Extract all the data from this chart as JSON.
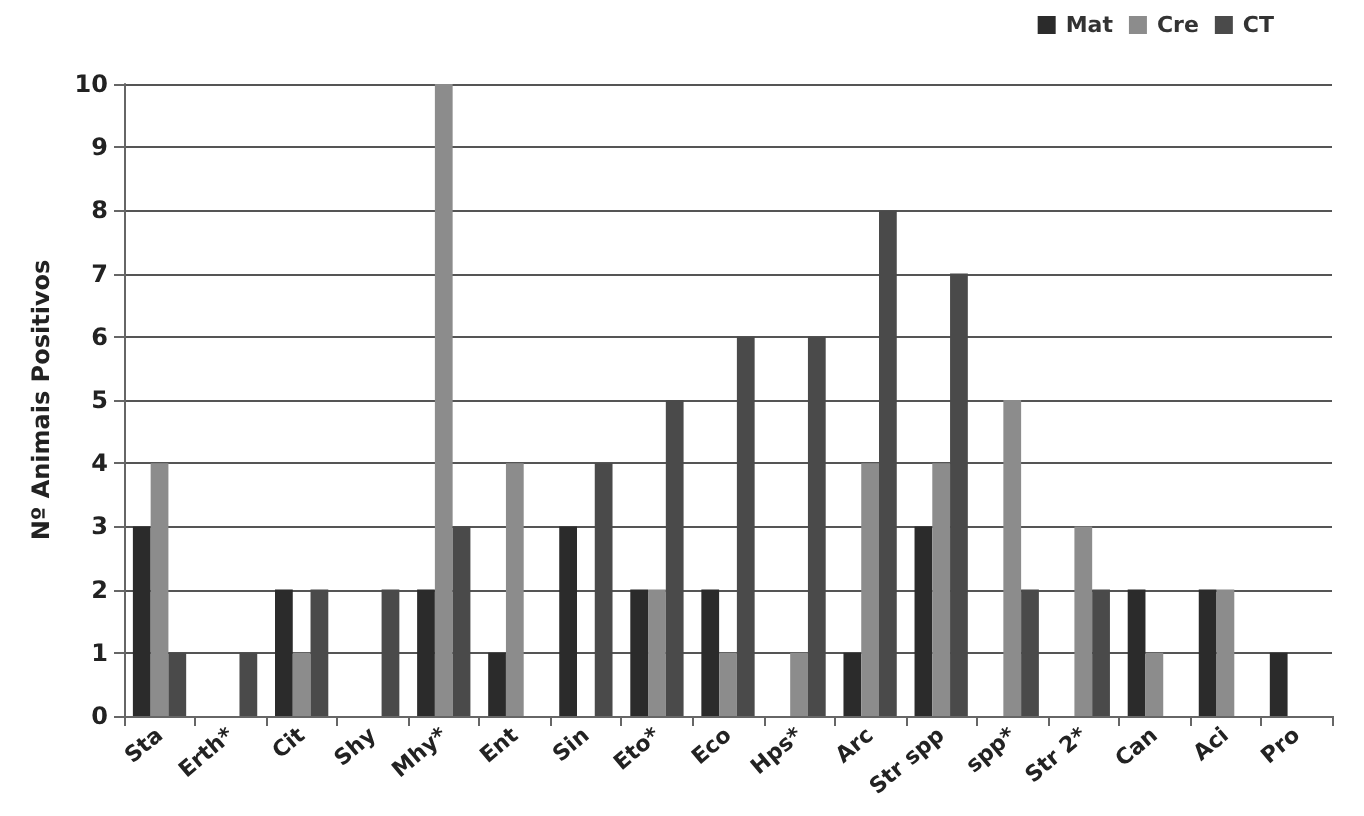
{
  "chart_data": {
    "type": "bar",
    "ylabel": "Nº Animais Positivos",
    "categories": [
      "Sta",
      "Erth*",
      "Cit",
      "Shy",
      "Mhy*",
      "Ent",
      "Sin",
      "Eto*",
      "Eco",
      "Hps*",
      "Arc",
      "Str spp",
      "spp*",
      "Str 2*",
      "Can",
      "Aci",
      "Pro"
    ],
    "series": [
      {
        "name": "Mat",
        "color": "#2b2b2b",
        "values": [
          3,
          0,
          2,
          0,
          2,
          1,
          3,
          2,
          2,
          0,
          1,
          3,
          0,
          0,
          2,
          2,
          1
        ]
      },
      {
        "name": "Cre",
        "color": "#8c8c8c",
        "values": [
          4,
          0,
          1,
          0,
          10,
          4,
          0,
          2,
          1,
          1,
          4,
          4,
          5,
          3,
          1,
          2,
          0
        ]
      },
      {
        "name": "CT",
        "color": "#4a4a4a",
        "values": [
          1,
          1,
          2,
          2,
          3,
          0,
          4,
          5,
          6,
          6,
          8,
          7,
          2,
          2,
          0,
          0,
          0
        ]
      }
    ],
    "ylim": [
      0,
      10
    ],
    "yticks": [
      0,
      1,
      2,
      3,
      4,
      5,
      6,
      7,
      8,
      9,
      10
    ],
    "grid": "y",
    "legend": "top right"
  }
}
